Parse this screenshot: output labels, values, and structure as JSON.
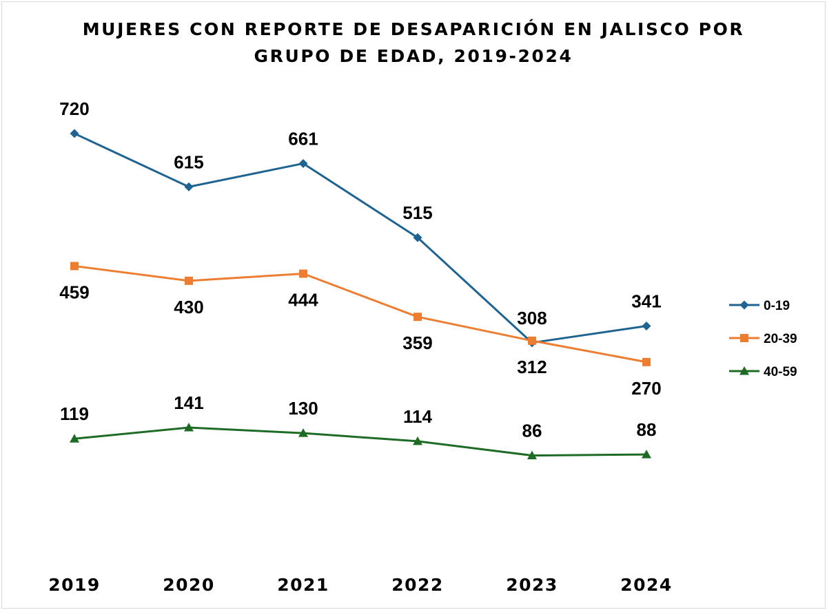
{
  "chart_data": {
    "type": "line",
    "title_lines": [
      "MUJERES CON REPORTE DE DESAPARICIÓN EN JALISCO POR",
      "GRUPO DE EDAD, 2019-2024"
    ],
    "categories": [
      "2019",
      "2020",
      "2021",
      "2022",
      "2023",
      "2024"
    ],
    "series": [
      {
        "name": "0-19",
        "values": [
          720,
          615,
          661,
          515,
          308,
          341
        ],
        "color": "#1f6391",
        "marker": "diamond",
        "label_position": [
          "above",
          "above",
          "above",
          "above",
          "above",
          "above"
        ]
      },
      {
        "name": "20-39",
        "values": [
          459,
          430,
          444,
          359,
          312,
          270
        ],
        "color": "#ed7d31",
        "marker": "square",
        "label_position": [
          "below",
          "below",
          "below",
          "below",
          "below",
          "below"
        ]
      },
      {
        "name": "40-59",
        "values": [
          119,
          141,
          130,
          114,
          86,
          88
        ],
        "color": "#1e6b25",
        "marker": "triangle",
        "label_position": [
          "above",
          "above",
          "above",
          "above",
          "above",
          "above"
        ]
      }
    ],
    "xlabel": "",
    "ylabel": "",
    "ylim": [
      0,
      720
    ],
    "grid": false,
    "legend": "right"
  }
}
